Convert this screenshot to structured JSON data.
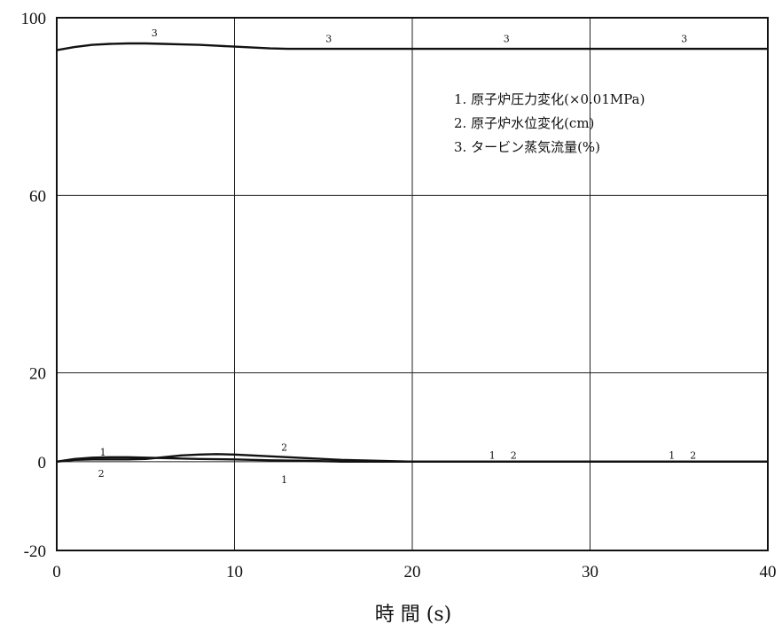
{
  "chart_data": {
    "type": "line",
    "xlabel": "時 間 (s)",
    "xlim": [
      0,
      40
    ],
    "ylim": [
      -20,
      100
    ],
    "xticks": [
      "0",
      "10",
      "20",
      "30",
      "40"
    ],
    "yticks": [
      "100",
      "60",
      "20",
      "0",
      "-20"
    ],
    "grid": true,
    "legend": [
      "1. 原子炉圧力変化(×0.01MPa)",
      "2. 原子炉水位変化(cm)",
      "3. タービン蒸気流量(%)"
    ],
    "legend_position": "top-right",
    "series": [
      {
        "name": "1",
        "x": [
          0,
          1,
          2,
          3,
          4,
          5,
          6,
          7,
          8,
          10,
          12,
          14,
          15,
          16,
          20,
          25,
          30,
          35,
          40
        ],
        "y": [
          0,
          0.6,
          0.9,
          1.0,
          1.0,
          0.9,
          0.8,
          0.7,
          0.6,
          0.5,
          0.3,
          0.2,
          0.1,
          0,
          0,
          0,
          0,
          0,
          0
        ]
      },
      {
        "name": "2",
        "x": [
          0,
          1,
          2,
          3,
          4,
          5,
          6,
          7,
          8,
          9,
          10,
          11,
          12,
          13,
          14,
          15,
          16,
          18,
          20,
          25,
          30,
          35,
          40
        ],
        "y": [
          0,
          0.4,
          0.5,
          0.5,
          0.5,
          0.6,
          1.0,
          1.4,
          1.6,
          1.7,
          1.6,
          1.4,
          1.2,
          1.0,
          0.8,
          0.6,
          0.4,
          0.2,
          0,
          0,
          0,
          0,
          0
        ]
      },
      {
        "name": "3",
        "x": [
          0,
          1,
          2,
          3,
          4,
          5,
          6,
          7,
          8,
          9,
          10,
          11,
          12,
          13,
          14,
          15,
          16,
          18,
          20,
          25,
          30,
          35,
          40
        ],
        "y": [
          92.7,
          93.4,
          93.9,
          94.1,
          94.2,
          94.2,
          94.1,
          94.0,
          93.9,
          93.7,
          93.5,
          93.3,
          93.1,
          93.0,
          93.0,
          93.0,
          93.0,
          93.0,
          93.0,
          93.0,
          93.0,
          93.0,
          93.0
        ]
      }
    ],
    "line_labels": [
      {
        "text": "3",
        "x": 5.5,
        "y": 96.6
      },
      {
        "text": "3",
        "x": 15.3,
        "y": 95.3
      },
      {
        "text": "3",
        "x": 25.3,
        "y": 95.3
      },
      {
        "text": "3",
        "x": 35.3,
        "y": 95.3
      },
      {
        "text": "1",
        "x": 2.6,
        "y": 2.2
      },
      {
        "text": "2",
        "x": 2.5,
        "y": -2.6
      },
      {
        "text": "2",
        "x": 12.8,
        "y": 3.3
      },
      {
        "text": "1",
        "x": 12.8,
        "y": -4.0
      },
      {
        "text": "1",
        "x": 24.5,
        "y": 1.5
      },
      {
        "text": "2",
        "x": 25.7,
        "y": 1.5
      },
      {
        "text": "1",
        "x": 34.6,
        "y": 1.5
      },
      {
        "text": "2",
        "x": 35.8,
        "y": 1.5
      }
    ]
  }
}
